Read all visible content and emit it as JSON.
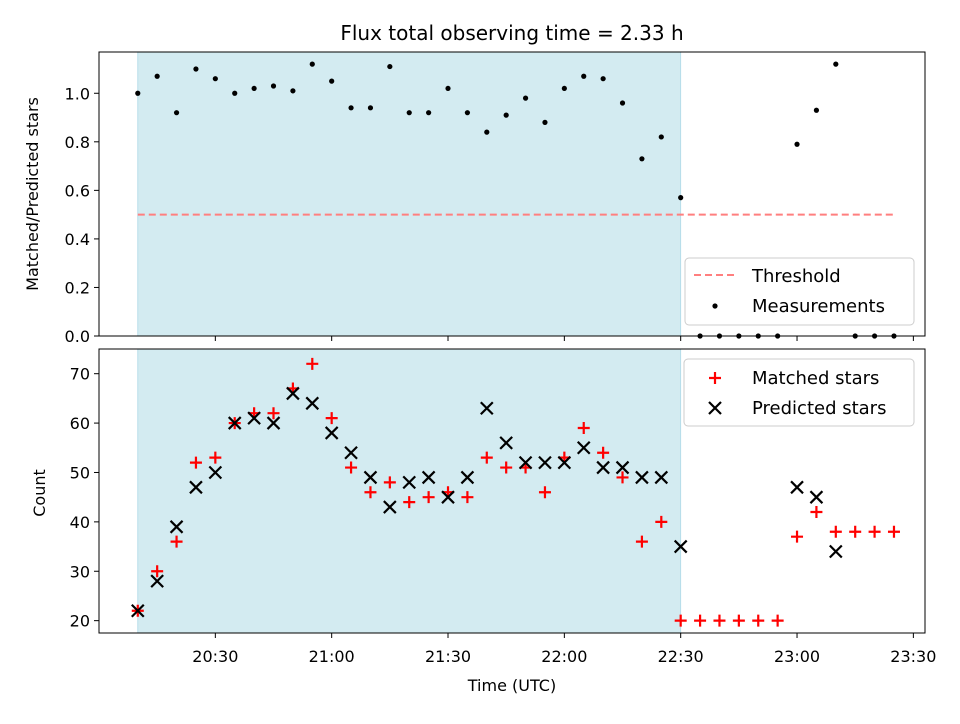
{
  "chart_data": [
    {
      "type": "scatter",
      "title": "Flux total observing time = 2.33 h",
      "xlabel": "",
      "ylabel": "Matched/Predicted stars",
      "ylim": [
        0,
        1.17
      ],
      "yticks": [
        "0.0",
        "0.2",
        "0.4",
        "0.6",
        "0.8",
        "1.0"
      ],
      "shaded_interval": [
        "20:10",
        "22:30"
      ],
      "threshold": {
        "name": "Threshold",
        "value": 0.5,
        "x_range": [
          "20:10",
          "23:25"
        ],
        "color": "#ff7f7f"
      },
      "series": [
        {
          "name": "Measurements",
          "marker": "dot",
          "color": "#000000",
          "x": [
            "20:10",
            "20:15",
            "20:20",
            "20:25",
            "20:30",
            "20:35",
            "20:40",
            "20:45",
            "20:50",
            "20:55",
            "21:00",
            "21:05",
            "21:10",
            "21:15",
            "21:20",
            "21:25",
            "21:30",
            "21:35",
            "21:40",
            "21:45",
            "21:50",
            "21:55",
            "22:00",
            "22:05",
            "22:10",
            "22:15",
            "22:20",
            "22:25",
            "22:30",
            "22:35",
            "22:40",
            "22:45",
            "22:50",
            "22:55",
            "23:00",
            "23:05",
            "23:10",
            "23:15",
            "23:20",
            "23:25"
          ],
          "values": [
            1.0,
            1.07,
            0.92,
            1.1,
            1.06,
            1.0,
            1.02,
            1.03,
            1.01,
            1.12,
            1.05,
            0.94,
            0.94,
            1.11,
            0.92,
            0.92,
            1.02,
            0.92,
            0.84,
            0.91,
            0.98,
            0.88,
            1.02,
            1.07,
            1.06,
            0.96,
            0.73,
            0.82,
            0.57,
            0,
            0,
            0,
            0,
            0,
            0.79,
            0.93,
            1.12,
            0,
            0,
            0
          ]
        }
      ],
      "legend_position": "lower-right"
    },
    {
      "type": "scatter",
      "title": "",
      "xlabel": "Time (UTC)",
      "ylabel": "Count",
      "ylim": [
        17.5,
        75
      ],
      "yticks": [
        "20",
        "30",
        "40",
        "50",
        "60",
        "70"
      ],
      "xticks": [
        "20:30",
        "21:00",
        "21:30",
        "22:00",
        "22:30",
        "23:00",
        "23:30"
      ],
      "xlim": [
        "20:00",
        "23:33"
      ],
      "shaded_interval": [
        "20:10",
        "22:30"
      ],
      "series": [
        {
          "name": "Matched stars",
          "marker": "plus",
          "color": "#ff0000",
          "x": [
            "20:10",
            "20:15",
            "20:20",
            "20:25",
            "20:30",
            "20:35",
            "20:40",
            "20:45",
            "20:50",
            "20:55",
            "21:00",
            "21:05",
            "21:10",
            "21:15",
            "21:20",
            "21:25",
            "21:30",
            "21:35",
            "21:40",
            "21:45",
            "21:50",
            "21:55",
            "22:00",
            "22:05",
            "22:10",
            "22:15",
            "22:20",
            "22:25",
            "22:30",
            "22:35",
            "22:40",
            "22:45",
            "22:50",
            "22:55",
            "23:00",
            "23:05",
            "23:10",
            "23:15",
            "23:20",
            "23:25"
          ],
          "values": [
            22,
            30,
            36,
            52,
            53,
            60,
            62,
            62,
            67,
            72,
            61,
            51,
            46,
            48,
            44,
            45,
            46,
            45,
            53,
            51,
            51,
            46,
            53,
            59,
            54,
            49,
            36,
            40,
            20,
            20,
            20,
            20,
            20,
            20,
            37,
            42,
            38,
            38,
            38,
            38
          ]
        },
        {
          "name": "Predicted stars",
          "marker": "x",
          "color": "#000000",
          "x": [
            "20:10",
            "20:15",
            "20:20",
            "20:25",
            "20:30",
            "20:35",
            "20:40",
            "20:45",
            "20:50",
            "20:55",
            "21:00",
            "21:05",
            "21:10",
            "21:15",
            "21:20",
            "21:25",
            "21:30",
            "21:35",
            "21:40",
            "21:45",
            "21:50",
            "21:55",
            "22:00",
            "22:05",
            "22:10",
            "22:15",
            "22:20",
            "22:25",
            "22:30",
            "23:00",
            "23:05",
            "23:10"
          ],
          "values": [
            22,
            28,
            39,
            47,
            50,
            60,
            61,
            60,
            66,
            64,
            58,
            54,
            49,
            43,
            48,
            49,
            45,
            49,
            63,
            56,
            52,
            52,
            52,
            55,
            51,
            51,
            49,
            49,
            35,
            47,
            45,
            34
          ]
        }
      ],
      "legend_position": "top-right"
    }
  ],
  "colors": {
    "shade": "#d3ebf1",
    "shade_edge": "#add8e6"
  }
}
